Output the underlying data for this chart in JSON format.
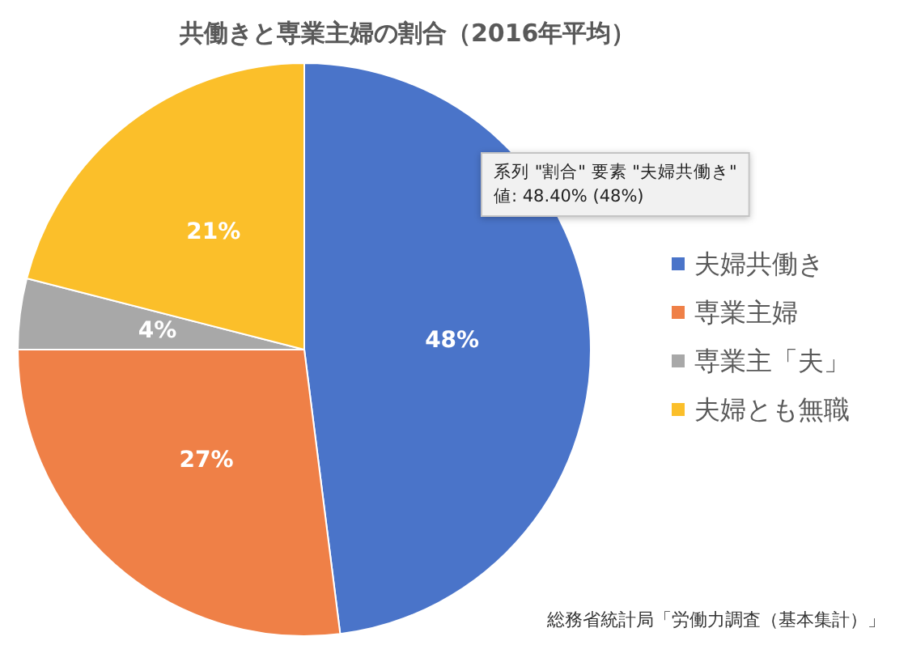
{
  "chart_data": {
    "type": "pie",
    "title": "共働きと専業主婦の割合（2016年平均）",
    "categories": [
      "夫婦共働き",
      "専業主婦",
      "専業主「夫」",
      "夫婦とも無職"
    ],
    "values": [
      48,
      27,
      4,
      21
    ],
    "colors": [
      "#4a74c9",
      "#ef8047",
      "#a8a8a8",
      "#fbbf2a"
    ],
    "value_labels": [
      "48%",
      "27%",
      "4%",
      "21%"
    ],
    "legend": "right",
    "annotations": [
      "系列 \"割合\" 要素 \"夫婦共働き\"\n値: 48.40% (48%)",
      "総務省統計局「労働力調査（基本集計）」"
    ]
  }
}
